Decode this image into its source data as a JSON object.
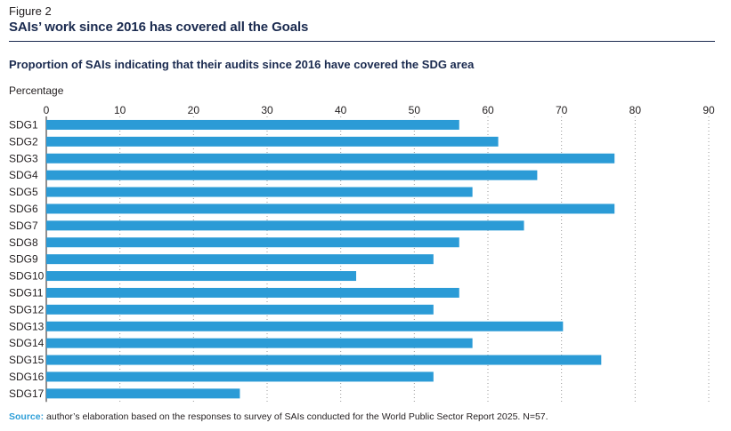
{
  "figure_label": "Figure 2",
  "title": "SAIs’ work since 2016 has covered all the Goals",
  "subtitle": "Proportion of SAIs indicating that their audits since 2016 have covered the SDG area",
  "source": {
    "label": "Source:",
    "text": " author’s elaboration based on the responses to survey of SAIs conducted for the World Public Sector Report 2025. N=57."
  },
  "colors": {
    "bar": "#2b9bd6",
    "grid": "#9a9a9a",
    "title": "#1a2a4f",
    "source_label": "#2f9fd8"
  },
  "chart_data": {
    "type": "bar",
    "orientation": "horizontal",
    "ylabel": "Percentage",
    "xlim": [
      0,
      90
    ],
    "xticks": [
      0,
      10,
      20,
      30,
      40,
      50,
      60,
      70,
      80,
      90
    ],
    "grid": "vertical-dotted",
    "categories": [
      "SDG1",
      "SDG2",
      "SDG3",
      "SDG4",
      "SDG5",
      "SDG6",
      "SDG7",
      "SDG8",
      "SDG9",
      "SDG10",
      "SDG11",
      "SDG12",
      "SDG13",
      "SDG14",
      "SDG15",
      "SDG16",
      "SDG17"
    ],
    "values": [
      56.1,
      61.4,
      77.2,
      66.7,
      57.9,
      77.2,
      64.9,
      56.1,
      52.6,
      42.1,
      56.1,
      52.6,
      70.2,
      57.9,
      75.4,
      52.6,
      26.3
    ]
  }
}
